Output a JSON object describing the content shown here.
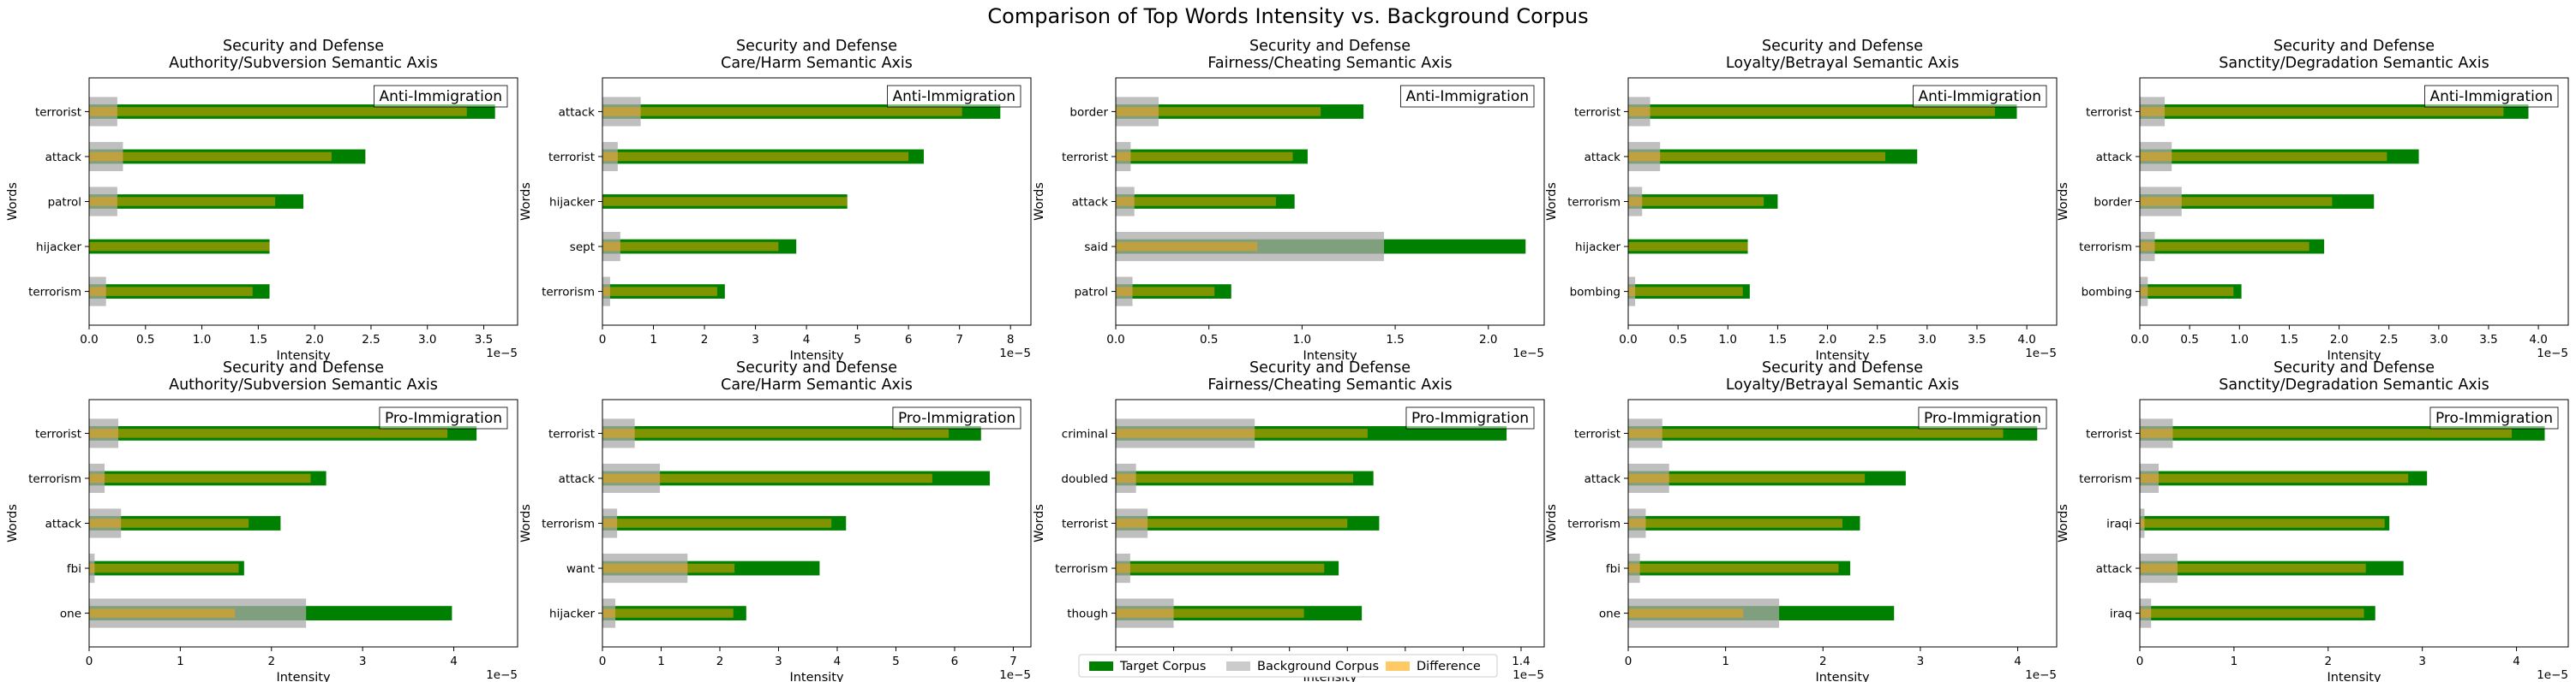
{
  "figure": {
    "title": "Comparison of Top Words Intensity vs. Background Corpus",
    "legend": {
      "placement": "bottom-center",
      "entries": [
        {
          "label": "Target Corpus",
          "color": "#008000"
        },
        {
          "label": "Background Corpus",
          "color": "#a9a9a9"
        },
        {
          "label": "Difference",
          "color": "#ffa500"
        }
      ]
    }
  },
  "chart_data": [
    {
      "type": "bar",
      "orientation": "horizontal",
      "title_line1": "Security and Defense",
      "title_line2": "Authority/Subversion Semantic Axis",
      "annotation": "Anti-Immigration",
      "xlabel": "Intensity",
      "ylabel": "Words",
      "x_scale_label": "1e−5",
      "xlim": [
        0,
        3.8
      ],
      "xticks": [
        0,
        0.5,
        1.0,
        1.5,
        2.0,
        2.5,
        3.0,
        3.5
      ],
      "xtick_labels": [
        "0.0",
        "0.5",
        "1.0",
        "1.5",
        "2.0",
        "2.5",
        "3.0",
        "3.5"
      ],
      "categories": [
        "terrorist",
        "attack",
        "patrol",
        "hijacker",
        "terrorism"
      ],
      "series": [
        {
          "name": "Target Corpus",
          "values": [
            3.6,
            2.45,
            1.9,
            1.6,
            1.6
          ]
        },
        {
          "name": "Background Corpus",
          "values": [
            0.25,
            0.3,
            0.25,
            0.0,
            0.15
          ]
        },
        {
          "name": "Difference",
          "values": [
            3.35,
            2.15,
            1.65,
            1.6,
            1.45
          ]
        }
      ]
    },
    {
      "type": "bar",
      "orientation": "horizontal",
      "title_line1": "Security and Defense",
      "title_line2": "Care/Harm Semantic Axis",
      "annotation": "Anti-Immigration",
      "xlabel": "Intensity",
      "ylabel": "Words",
      "x_scale_label": "1e−5",
      "xlim": [
        0,
        8.4
      ],
      "xticks": [
        0,
        1,
        2,
        3,
        4,
        5,
        6,
        7,
        8
      ],
      "xtick_labels": [
        "0",
        "1",
        "2",
        "3",
        "4",
        "5",
        "6",
        "7",
        "8"
      ],
      "categories": [
        "attack",
        "terrorist",
        "hijacker",
        "sept",
        "terrorism"
      ],
      "series": [
        {
          "name": "Target Corpus",
          "values": [
            7.8,
            6.3,
            4.8,
            3.8,
            2.4
          ]
        },
        {
          "name": "Background Corpus",
          "values": [
            0.75,
            0.3,
            0.0,
            0.35,
            0.15
          ]
        },
        {
          "name": "Difference",
          "values": [
            7.05,
            6.0,
            4.8,
            3.45,
            2.25
          ]
        }
      ]
    },
    {
      "type": "bar",
      "orientation": "horizontal",
      "title_line1": "Security and Defense",
      "title_line2": "Fairness/Cheating Semantic Axis",
      "annotation": "Anti-Immigration",
      "xlabel": "Intensity",
      "ylabel": "Words",
      "x_scale_label": "1e−5",
      "xlim": [
        0,
        2.3
      ],
      "xticks": [
        0,
        0.5,
        1.0,
        1.5,
        2.0
      ],
      "xtick_labels": [
        "0.0",
        "0.5",
        "1.0",
        "1.5",
        "2.0"
      ],
      "categories": [
        "border",
        "terrorist",
        "attack",
        "said",
        "patrol"
      ],
      "series": [
        {
          "name": "Target Corpus",
          "values": [
            1.33,
            1.03,
            0.96,
            2.2,
            0.62
          ]
        },
        {
          "name": "Background Corpus",
          "values": [
            0.23,
            0.08,
            0.1,
            1.44,
            0.09
          ]
        },
        {
          "name": "Difference",
          "values": [
            1.1,
            0.95,
            0.86,
            0.76,
            0.53
          ]
        }
      ]
    },
    {
      "type": "bar",
      "orientation": "horizontal",
      "title_line1": "Security and Defense",
      "title_line2": "Loyalty/Betrayal Semantic Axis",
      "annotation": "Anti-Immigration",
      "xlabel": "Intensity",
      "ylabel": "Words",
      "x_scale_label": "1e−5",
      "xlim": [
        0,
        4.3
      ],
      "xticks": [
        0,
        0.5,
        1.0,
        1.5,
        2.0,
        2.5,
        3.0,
        3.5,
        4.0
      ],
      "xtick_labels": [
        "0.0",
        "0.5",
        "1.0",
        "1.5",
        "2.0",
        "2.5",
        "3.0",
        "3.5",
        "4.0"
      ],
      "categories": [
        "terrorist",
        "attack",
        "terrorism",
        "hijacker",
        "bombing"
      ],
      "series": [
        {
          "name": "Target Corpus",
          "values": [
            3.9,
            2.9,
            1.5,
            1.2,
            1.22
          ]
        },
        {
          "name": "Background Corpus",
          "values": [
            0.22,
            0.32,
            0.14,
            0.0,
            0.07
          ]
        },
        {
          "name": "Difference",
          "values": [
            3.68,
            2.58,
            1.36,
            1.2,
            1.15
          ]
        }
      ]
    },
    {
      "type": "bar",
      "orientation": "horizontal",
      "title_line1": "Security and Defense",
      "title_line2": "Sanctity/Degradation Semantic Axis",
      "annotation": "Anti-Immigration",
      "xlabel": "Intensity",
      "ylabel": "Words",
      "x_scale_label": "1e−5",
      "xlim": [
        0,
        4.3
      ],
      "xticks": [
        0,
        0.5,
        1.0,
        1.5,
        2.0,
        2.5,
        3.0,
        3.5,
        4.0
      ],
      "xtick_labels": [
        "0.0",
        "0.5",
        "1.0",
        "1.5",
        "2.0",
        "2.5",
        "3.0",
        "3.5",
        "4.0"
      ],
      "categories": [
        "terrorist",
        "attack",
        "border",
        "terrorism",
        "bombing"
      ],
      "series": [
        {
          "name": "Target Corpus",
          "values": [
            3.9,
            2.8,
            2.35,
            1.85,
            1.02
          ]
        },
        {
          "name": "Background Corpus",
          "values": [
            0.25,
            0.32,
            0.42,
            0.15,
            0.08
          ]
        },
        {
          "name": "Difference",
          "values": [
            3.65,
            2.48,
            1.93,
            1.7,
            0.94
          ]
        }
      ]
    },
    {
      "type": "bar",
      "orientation": "horizontal",
      "title_line1": "Security and Defense",
      "title_line2": "Authority/Subversion Semantic Axis",
      "annotation": "Pro-Immigration",
      "xlabel": "Intensity",
      "ylabel": "Words",
      "x_scale_label": "1e−5",
      "xlim": [
        0,
        4.7
      ],
      "xticks": [
        0,
        1,
        2,
        3,
        4
      ],
      "xtick_labels": [
        "0",
        "1",
        "2",
        "3",
        "4"
      ],
      "categories": [
        "terrorist",
        "terrorism",
        "attack",
        "fbi",
        "one"
      ],
      "series": [
        {
          "name": "Target Corpus",
          "values": [
            4.25,
            2.6,
            2.1,
            1.7,
            3.98
          ]
        },
        {
          "name": "Background Corpus",
          "values": [
            0.32,
            0.17,
            0.35,
            0.06,
            2.38
          ]
        },
        {
          "name": "Difference",
          "values": [
            3.93,
            2.43,
            1.75,
            1.64,
            1.6
          ]
        }
      ]
    },
    {
      "type": "bar",
      "orientation": "horizontal",
      "title_line1": "Security and Defense",
      "title_line2": "Care/Harm Semantic Axis",
      "annotation": "Pro-Immigration",
      "xlabel": "Intensity",
      "ylabel": "Words",
      "x_scale_label": "1e−5",
      "xlim": [
        0,
        7.3
      ],
      "xticks": [
        0,
        1,
        2,
        3,
        4,
        5,
        6,
        7
      ],
      "xtick_labels": [
        "0",
        "1",
        "2",
        "3",
        "4",
        "5",
        "6",
        "7"
      ],
      "categories": [
        "terrorist",
        "attack",
        "terrorism",
        "want",
        "hijacker"
      ],
      "series": [
        {
          "name": "Target Corpus",
          "values": [
            6.45,
            6.6,
            4.15,
            3.7,
            2.45
          ]
        },
        {
          "name": "Background Corpus",
          "values": [
            0.55,
            0.98,
            0.25,
            1.45,
            0.22
          ]
        },
        {
          "name": "Difference",
          "values": [
            5.9,
            5.62,
            3.9,
            2.25,
            2.23
          ]
        }
      ]
    },
    {
      "type": "bar",
      "orientation": "horizontal",
      "title_line1": "Security and Defense",
      "title_line2": "Fairness/Cheating Semantic Axis",
      "annotation": "Pro-Immigration",
      "xlabel": "Intensity",
      "ylabel": "Words",
      "x_scale_label": "1e−5",
      "xlim": [
        0,
        1.48
      ],
      "xticks": [
        0,
        0.2,
        0.4,
        0.6,
        0.8,
        1.0,
        1.2,
        1.4
      ],
      "xtick_labels": [
        "0.0",
        "0.2",
        "0.4",
        "0.6",
        "0.8",
        "1.0",
        "1.2",
        "1.4"
      ],
      "categories": [
        "criminal",
        "doubled",
        "terrorist",
        "terrorism",
        "though"
      ],
      "series": [
        {
          "name": "Target Corpus",
          "values": [
            1.35,
            0.89,
            0.91,
            0.77,
            0.85
          ]
        },
        {
          "name": "Background Corpus",
          "values": [
            0.48,
            0.07,
            0.11,
            0.05,
            0.2
          ]
        },
        {
          "name": "Difference",
          "values": [
            0.87,
            0.82,
            0.8,
            0.72,
            0.65
          ]
        }
      ]
    },
    {
      "type": "bar",
      "orientation": "horizontal",
      "title_line1": "Security and Defense",
      "title_line2": "Loyalty/Betrayal Semantic Axis",
      "annotation": "Pro-Immigration",
      "xlabel": "Intensity",
      "ylabel": "Words",
      "x_scale_label": "1e−5",
      "xlim": [
        0,
        4.4
      ],
      "xticks": [
        0,
        1,
        2,
        3,
        4
      ],
      "xtick_labels": [
        "0",
        "1",
        "2",
        "3",
        "4"
      ],
      "categories": [
        "terrorist",
        "attack",
        "terrorism",
        "fbi",
        "one"
      ],
      "series": [
        {
          "name": "Target Corpus",
          "values": [
            4.2,
            2.85,
            2.38,
            2.28,
            2.73
          ]
        },
        {
          "name": "Background Corpus",
          "values": [
            0.35,
            0.42,
            0.18,
            0.12,
            1.55
          ]
        },
        {
          "name": "Difference",
          "values": [
            3.85,
            2.43,
            2.2,
            2.16,
            1.18
          ]
        }
      ]
    },
    {
      "type": "bar",
      "orientation": "horizontal",
      "title_line1": "Security and Defense",
      "title_line2": "Sanctity/Degradation Semantic Axis",
      "annotation": "Pro-Immigration",
      "xlabel": "Intensity",
      "ylabel": "Words",
      "x_scale_label": "1e−5",
      "xlim": [
        0,
        4.55
      ],
      "xticks": [
        0,
        1,
        2,
        3,
        4
      ],
      "xtick_labels": [
        "0",
        "1",
        "2",
        "3",
        "4"
      ],
      "categories": [
        "terrorist",
        "terrorism",
        "iraqi",
        "attack",
        "iraq"
      ],
      "series": [
        {
          "name": "Target Corpus",
          "values": [
            4.3,
            3.05,
            2.65,
            2.8,
            2.5
          ]
        },
        {
          "name": "Background Corpus",
          "values": [
            0.35,
            0.2,
            0.05,
            0.4,
            0.12
          ]
        },
        {
          "name": "Difference",
          "values": [
            3.95,
            2.85,
            2.6,
            2.4,
            2.38
          ]
        }
      ]
    }
  ]
}
